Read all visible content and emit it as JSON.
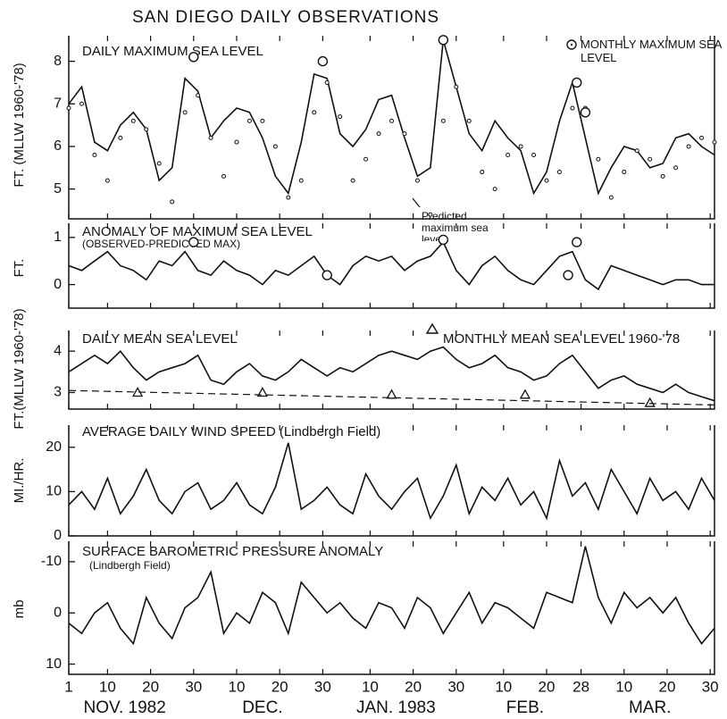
{
  "title": "SAN DIEGO DAILY OBSERVATIONS",
  "chart_data": [
    {
      "type": "line",
      "title": "DAILY MAXIMUM SEA LEVEL",
      "ylabel": "FT. (MLLW 1960-'78)",
      "x": [
        1,
        4,
        7,
        10,
        13,
        16,
        19,
        22,
        25,
        28,
        31,
        34,
        37,
        40,
        43,
        46,
        49,
        52,
        55,
        58,
        61,
        64,
        67,
        70,
        73,
        76,
        79,
        82,
        85,
        88,
        91,
        94,
        97,
        100,
        103,
        106,
        109,
        112,
        115,
        118,
        121,
        124,
        127,
        130,
        133,
        136,
        139,
        142,
        145,
        148,
        151
      ],
      "xlim": [
        1,
        151
      ],
      "ylim": [
        4.3,
        8.6
      ],
      "yticks": [
        5,
        6,
        7,
        8
      ],
      "series": [
        {
          "style": "line",
          "color": "#111",
          "values": [
            7.0,
            7.4,
            6.1,
            5.9,
            6.5,
            6.8,
            6.4,
            5.2,
            5.5,
            7.6,
            7.3,
            6.2,
            6.6,
            6.9,
            6.8,
            6.2,
            5.3,
            4.9,
            6.1,
            7.7,
            7.6,
            6.3,
            6.0,
            6.4,
            7.1,
            7.2,
            6.2,
            5.3,
            5.5,
            8.5,
            7.4,
            6.3,
            5.9,
            6.6,
            6.2,
            5.9,
            4.9,
            5.4,
            6.6,
            7.5,
            6.2,
            4.9,
            5.5,
            6.0,
            5.9,
            5.5,
            5.6,
            6.2,
            6.3,
            6.0,
            5.8
          ]
        },
        {
          "name": "Predicted maximum sea level",
          "style": "dots",
          "color": "#111",
          "values": [
            6.9,
            7.0,
            5.8,
            5.2,
            6.2,
            6.6,
            6.4,
            5.6,
            4.7,
            6.8,
            7.2,
            6.2,
            5.3,
            6.1,
            6.6,
            6.6,
            6.0,
            4.8,
            5.2,
            6.8,
            7.5,
            6.7,
            5.2,
            5.7,
            6.3,
            6.6,
            6.3,
            5.2,
            4.4,
            6.6,
            7.4,
            6.6,
            5.4,
            5.0,
            5.8,
            6.0,
            5.8,
            5.2,
            5.4,
            6.9,
            6.9,
            5.7,
            4.8,
            5.4,
            5.9,
            5.7,
            5.3,
            5.5,
            6.0,
            6.2,
            6.1
          ]
        },
        {
          "name": "MONTHLY MAXIMUM SEA LEVEL",
          "style": "circle",
          "color": "#111",
          "x": [
            30,
            60,
            88,
            119,
            121
          ],
          "values": [
            8.1,
            8.0,
            8.5,
            7.5,
            6.8
          ]
        }
      ]
    },
    {
      "type": "line",
      "title": "ANOMALY OF MAXIMUM SEA LEVEL",
      "subtitle": "(OBSERVED-PREDICTED MAX)",
      "ylabel": "FT.",
      "x": [
        1,
        4,
        7,
        10,
        13,
        16,
        19,
        22,
        25,
        28,
        31,
        34,
        37,
        40,
        43,
        46,
        49,
        52,
        55,
        58,
        61,
        64,
        67,
        70,
        73,
        76,
        79,
        82,
        85,
        88,
        91,
        94,
        97,
        100,
        103,
        106,
        109,
        112,
        115,
        118,
        121,
        124,
        127,
        130,
        133,
        136,
        139,
        142,
        145,
        148,
        151
      ],
      "xlim": [
        1,
        151
      ],
      "ylim": [
        -0.5,
        1.3
      ],
      "yticks": [
        0,
        1
      ],
      "series": [
        {
          "style": "line",
          "color": "#111",
          "values": [
            0.4,
            0.3,
            0.5,
            0.7,
            0.4,
            0.3,
            0.1,
            0.5,
            0.4,
            0.7,
            0.3,
            0.2,
            0.5,
            0.3,
            0.2,
            0.0,
            0.3,
            0.2,
            0.4,
            0.6,
            0.2,
            0.0,
            0.4,
            0.6,
            0.5,
            0.6,
            0.3,
            0.5,
            0.6,
            0.9,
            0.3,
            0.0,
            0.4,
            0.6,
            0.3,
            0.1,
            0.0,
            0.3,
            0.6,
            0.7,
            0.1,
            -0.1,
            0.4,
            0.3,
            0.2,
            0.1,
            0.0,
            0.1,
            0.1,
            0.0,
            0.0
          ]
        },
        {
          "style": "circle",
          "color": "#111",
          "x": [
            30,
            61,
            88,
            117,
            119
          ],
          "values": [
            0.9,
            0.2,
            0.95,
            0.2,
            0.9
          ]
        }
      ]
    },
    {
      "type": "line",
      "title": "DAILY MEAN SEA LEVEL",
      "ylabel": "FT.(MLLW 1960-'78)",
      "x": [
        1,
        4,
        7,
        10,
        13,
        16,
        19,
        22,
        25,
        28,
        31,
        34,
        37,
        40,
        43,
        46,
        49,
        52,
        55,
        58,
        61,
        64,
        67,
        70,
        73,
        76,
        79,
        82,
        85,
        88,
        91,
        94,
        97,
        100,
        103,
        106,
        109,
        112,
        115,
        118,
        121,
        124,
        127,
        130,
        133,
        136,
        139,
        142,
        145,
        148,
        151
      ],
      "xlim": [
        1,
        151
      ],
      "ylim": [
        2.6,
        4.5
      ],
      "yticks": [
        3,
        4
      ],
      "series": [
        {
          "style": "line",
          "color": "#111",
          "values": [
            3.5,
            3.7,
            3.9,
            3.7,
            4.0,
            3.6,
            3.3,
            3.5,
            3.6,
            3.7,
            3.9,
            3.3,
            3.2,
            3.5,
            3.7,
            3.4,
            3.3,
            3.5,
            3.8,
            3.6,
            3.4,
            3.6,
            3.5,
            3.7,
            3.9,
            4.0,
            3.9,
            3.8,
            4.0,
            4.1,
            3.8,
            3.6,
            3.7,
            3.9,
            3.6,
            3.5,
            3.3,
            3.4,
            3.7,
            3.9,
            3.5,
            3.1,
            3.3,
            3.4,
            3.2,
            3.1,
            3.0,
            3.2,
            3.0,
            2.9,
            2.8
          ]
        },
        {
          "name": "MONTHLY MEAN SEA LEVEL 1960-'78",
          "style": "triangle",
          "color": "#111",
          "x": [
            17,
            46,
            76,
            107,
            136
          ],
          "values": [
            3.0,
            3.0,
            2.95,
            2.95,
            2.75
          ]
        },
        {
          "style": "dashed",
          "color": "#111",
          "x": [
            1,
            151
          ],
          "values": [
            3.05,
            2.7
          ]
        }
      ]
    },
    {
      "type": "line",
      "title": "AVERAGE DAILY WIND SPEED (Lindbergh Field)",
      "ylabel": "MI./HR.",
      "x": [
        1,
        4,
        7,
        10,
        13,
        16,
        19,
        22,
        25,
        28,
        31,
        34,
        37,
        40,
        43,
        46,
        49,
        52,
        55,
        58,
        61,
        64,
        67,
        70,
        73,
        76,
        79,
        82,
        85,
        88,
        91,
        94,
        97,
        100,
        103,
        106,
        109,
        112,
        115,
        118,
        121,
        124,
        127,
        130,
        133,
        136,
        139,
        142,
        145,
        148,
        151
      ],
      "xlim": [
        1,
        151
      ],
      "ylim": [
        0,
        25
      ],
      "yticks": [
        0,
        10,
        20
      ],
      "series": [
        {
          "style": "line",
          "color": "#111",
          "values": [
            7,
            10,
            6,
            13,
            5,
            9,
            15,
            8,
            5,
            10,
            12,
            6,
            8,
            12,
            7,
            5,
            11,
            21,
            6,
            8,
            11,
            7,
            5,
            14,
            9,
            6,
            10,
            13,
            4,
            9,
            16,
            5,
            11,
            8,
            13,
            7,
            10,
            4,
            17,
            9,
            12,
            6,
            15,
            10,
            5,
            13,
            8,
            10,
            6,
            13,
            8
          ]
        }
      ]
    },
    {
      "type": "line",
      "title": "SURFACE BAROMETRIC PRESSURE ANOMALY",
      "subtitle": "(Lindbergh Field)",
      "ylabel": "mb",
      "x": [
        1,
        4,
        7,
        10,
        13,
        16,
        19,
        22,
        25,
        28,
        31,
        34,
        37,
        40,
        43,
        46,
        49,
        52,
        55,
        58,
        61,
        64,
        67,
        70,
        73,
        76,
        79,
        82,
        85,
        88,
        91,
        94,
        97,
        100,
        103,
        106,
        109,
        112,
        115,
        118,
        121,
        124,
        127,
        130,
        133,
        136,
        139,
        142,
        145,
        148,
        151
      ],
      "xlim": [
        1,
        151
      ],
      "ylim": [
        12,
        -14
      ],
      "yticks": [
        -10,
        0,
        10
      ],
      "xticks": [
        {
          "value": 1,
          "label": "1"
        },
        {
          "value": 10,
          "label": "10"
        },
        {
          "value": 20,
          "label": "20"
        },
        {
          "value": 30,
          "label": "30"
        },
        {
          "value": 40,
          "label": "10"
        },
        {
          "value": 50,
          "label": "20"
        },
        {
          "value": 60,
          "label": "30"
        },
        {
          "value": 71,
          "label": "10"
        },
        {
          "value": 81,
          "label": "20"
        },
        {
          "value": 91,
          "label": "30"
        },
        {
          "value": 102,
          "label": "10"
        },
        {
          "value": 112,
          "label": "20"
        },
        {
          "value": 120,
          "label": "28"
        },
        {
          "value": 130,
          "label": "10"
        },
        {
          "value": 140,
          "label": "20"
        },
        {
          "value": 150,
          "label": "30"
        }
      ],
      "month_ticks": [
        {
          "value": 14,
          "label": "NOV. 1982"
        },
        {
          "value": 46,
          "label": "DEC."
        },
        {
          "value": 77,
          "label": "JAN. 1983"
        },
        {
          "value": 107,
          "label": "FEB."
        },
        {
          "value": 136,
          "label": "MAR."
        }
      ],
      "series": [
        {
          "style": "line",
          "color": "#111",
          "values": [
            2,
            4,
            0,
            -2,
            3,
            6,
            -3,
            2,
            5,
            -1,
            -3,
            -8,
            4,
            0,
            2,
            -4,
            -2,
            4,
            -6,
            -3,
            0,
            -2,
            1,
            3,
            -2,
            -1,
            3,
            -3,
            -1,
            4,
            0,
            -4,
            2,
            -2,
            -1,
            1,
            3,
            -4,
            -3,
            -2,
            -13,
            -3,
            2,
            -4,
            -1,
            -3,
            0,
            -3,
            2,
            6,
            3
          ]
        }
      ]
    }
  ]
}
